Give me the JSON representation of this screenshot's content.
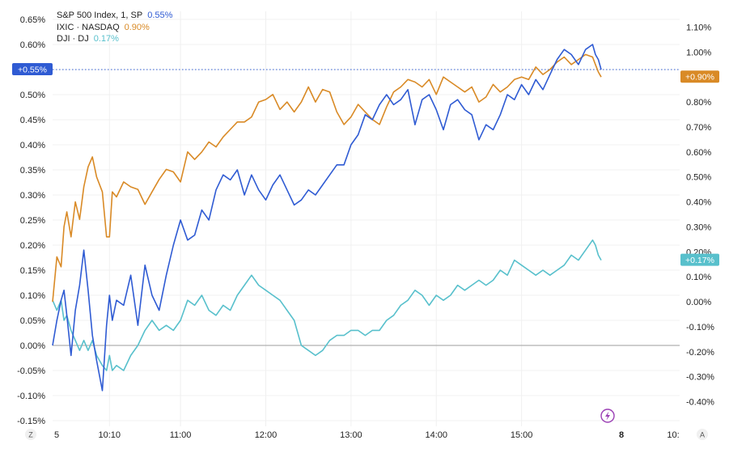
{
  "chart_data": {
    "type": "line",
    "legend": [
      {
        "name": "S&P 500 Index, 1, SP",
        "value": "0.55%",
        "color": "#2f5bd3"
      },
      {
        "name": "IXIC · NASDAQ",
        "value": "0.90%",
        "color": "#d98a26"
      },
      {
        "name": "DJI · DJ",
        "value": "0.17%",
        "color": "#58c0cc"
      }
    ],
    "x_ticks": [
      "5",
      "10:10",
      "11:00",
      "12:00",
      "13:00",
      "14:00",
      "15:00",
      "8",
      "10:"
    ],
    "corner_left": "Z",
    "corner_right": "A",
    "y_left": {
      "ticks": [
        "0.65%",
        "0.60%",
        "0.55%",
        "0.50%",
        "0.45%",
        "0.40%",
        "0.35%",
        "0.30%",
        "0.25%",
        "0.20%",
        "0.15%",
        "0.10%",
        "0.05%",
        "0.00%",
        "-0.05%",
        "-0.10%",
        "-0.15%"
      ],
      "range": [
        -0.15,
        0.65
      ]
    },
    "y_right": {
      "ticks": [
        "1.10%",
        "1.00%",
        "0.90%",
        "0.80%",
        "0.70%",
        "0.60%",
        "0.50%",
        "0.40%",
        "0.30%",
        "0.20%",
        "0.10%",
        "0.00%",
        "-0.10%",
        "-0.20%",
        "-0.30%",
        "-0.40%"
      ],
      "range": [
        -0.45,
        1.15
      ]
    },
    "x_range": [
      "9:30",
      "16:00"
    ],
    "badges": {
      "left": {
        "label": "+0.55%",
        "color": "#2f5bd3"
      },
      "right_top": {
        "label": "+0.90%",
        "color": "#d98a26"
      },
      "right_bottom": {
        "label": "+0.17%",
        "color": "#58c0cc"
      }
    },
    "series": [
      {
        "name": "S&P 500 Index, 1, SP",
        "axis": "left",
        "color": "#2f5bd3",
        "x": [
          "9:30",
          "9:33",
          "9:36",
          "9:38",
          "9:40",
          "9:43",
          "9:46",
          "9:49",
          "9:52",
          "9:55",
          "9:58",
          "10:01",
          "10:05",
          "10:08",
          "10:10",
          "10:12",
          "10:15",
          "10:20",
          "10:25",
          "10:30",
          "10:35",
          "10:40",
          "10:45",
          "10:50",
          "10:55",
          "11:00",
          "11:05",
          "11:10",
          "11:15",
          "11:20",
          "11:25",
          "11:30",
          "11:35",
          "11:40",
          "11:45",
          "11:50",
          "11:55",
          "12:00",
          "12:05",
          "12:10",
          "12:15",
          "12:20",
          "12:25",
          "12:30",
          "12:35",
          "12:40",
          "12:45",
          "12:50",
          "12:55",
          "13:00",
          "13:05",
          "13:10",
          "13:15",
          "13:20",
          "13:25",
          "13:30",
          "13:35",
          "13:40",
          "13:45",
          "13:50",
          "13:55",
          "14:00",
          "14:05",
          "14:10",
          "14:15",
          "14:20",
          "14:25",
          "14:30",
          "14:35",
          "14:40",
          "14:45",
          "14:50",
          "14:55",
          "15:00",
          "15:05",
          "15:10",
          "15:15",
          "15:20",
          "15:25",
          "15:30",
          "15:35",
          "15:40",
          "15:45",
          "15:50",
          "15:52",
          "15:54",
          "15:56"
        ],
        "y": [
          0.0,
          0.05,
          0.09,
          0.11,
          0.06,
          -0.02,
          0.07,
          0.12,
          0.19,
          0.11,
          0.02,
          -0.03,
          -0.09,
          0.04,
          0.1,
          0.05,
          0.09,
          0.08,
          0.14,
          0.04,
          0.16,
          0.1,
          0.07,
          0.14,
          0.2,
          0.25,
          0.21,
          0.22,
          0.27,
          0.25,
          0.31,
          0.34,
          0.33,
          0.35,
          0.3,
          0.34,
          0.31,
          0.29,
          0.32,
          0.34,
          0.31,
          0.28,
          0.29,
          0.31,
          0.3,
          0.32,
          0.34,
          0.36,
          0.36,
          0.4,
          0.42,
          0.46,
          0.45,
          0.48,
          0.5,
          0.48,
          0.49,
          0.51,
          0.44,
          0.49,
          0.5,
          0.47,
          0.43,
          0.48,
          0.49,
          0.47,
          0.46,
          0.41,
          0.44,
          0.43,
          0.46,
          0.5,
          0.49,
          0.52,
          0.5,
          0.53,
          0.51,
          0.54,
          0.57,
          0.59,
          0.58,
          0.56,
          0.59,
          0.6,
          0.58,
          0.57,
          0.55
        ]
      },
      {
        "name": "IXIC · NASDAQ",
        "axis": "right",
        "color": "#d98a26",
        "x": [
          "9:30",
          "9:33",
          "9:36",
          "9:38",
          "9:40",
          "9:43",
          "9:46",
          "9:49",
          "9:52",
          "9:55",
          "9:58",
          "10:01",
          "10:05",
          "10:08",
          "10:10",
          "10:12",
          "10:15",
          "10:20",
          "10:25",
          "10:30",
          "10:35",
          "10:40",
          "10:45",
          "10:50",
          "10:55",
          "11:00",
          "11:05",
          "11:10",
          "11:15",
          "11:20",
          "11:25",
          "11:30",
          "11:35",
          "11:40",
          "11:45",
          "11:50",
          "11:55",
          "12:00",
          "12:05",
          "12:10",
          "12:15",
          "12:20",
          "12:25",
          "12:30",
          "12:35",
          "12:40",
          "12:45",
          "12:50",
          "12:55",
          "13:00",
          "13:05",
          "13:10",
          "13:15",
          "13:20",
          "13:25",
          "13:30",
          "13:35",
          "13:40",
          "13:45",
          "13:50",
          "13:55",
          "14:00",
          "14:05",
          "14:10",
          "14:15",
          "14:20",
          "14:25",
          "14:30",
          "14:35",
          "14:40",
          "14:45",
          "14:50",
          "14:55",
          "15:00",
          "15:05",
          "15:10",
          "15:15",
          "15:20",
          "15:25",
          "15:30",
          "15:35",
          "15:40",
          "15:45",
          "15:50",
          "15:52",
          "15:54",
          "15:56"
        ],
        "y": [
          0.0,
          0.18,
          0.14,
          0.3,
          0.36,
          0.26,
          0.4,
          0.33,
          0.46,
          0.54,
          0.58,
          0.5,
          0.44,
          0.26,
          0.26,
          0.44,
          0.42,
          0.48,
          0.46,
          0.45,
          0.39,
          0.44,
          0.49,
          0.53,
          0.52,
          0.48,
          0.6,
          0.57,
          0.6,
          0.64,
          0.62,
          0.66,
          0.69,
          0.72,
          0.72,
          0.74,
          0.8,
          0.81,
          0.83,
          0.77,
          0.8,
          0.76,
          0.8,
          0.86,
          0.8,
          0.85,
          0.84,
          0.76,
          0.71,
          0.74,
          0.79,
          0.76,
          0.73,
          0.71,
          0.78,
          0.84,
          0.86,
          0.89,
          0.88,
          0.86,
          0.89,
          0.83,
          0.9,
          0.88,
          0.86,
          0.84,
          0.86,
          0.8,
          0.82,
          0.87,
          0.84,
          0.86,
          0.89,
          0.9,
          0.89,
          0.94,
          0.91,
          0.93,
          0.96,
          0.98,
          0.95,
          0.97,
          0.99,
          0.98,
          0.95,
          0.92,
          0.9
        ]
      },
      {
        "name": "DJI · DJ",
        "axis": "left",
        "color": "#58c0cc",
        "x": [
          "9:30",
          "9:33",
          "9:36",
          "9:38",
          "9:40",
          "9:43",
          "9:46",
          "9:49",
          "9:52",
          "9:55",
          "9:58",
          "10:01",
          "10:05",
          "10:08",
          "10:10",
          "10:12",
          "10:15",
          "10:20",
          "10:25",
          "10:30",
          "10:35",
          "10:40",
          "10:45",
          "10:50",
          "10:55",
          "11:00",
          "11:05",
          "11:10",
          "11:15",
          "11:20",
          "11:25",
          "11:30",
          "11:35",
          "11:40",
          "11:45",
          "11:50",
          "11:55",
          "12:00",
          "12:05",
          "12:10",
          "12:15",
          "12:20",
          "12:25",
          "12:30",
          "12:35",
          "12:40",
          "12:45",
          "12:50",
          "12:55",
          "13:00",
          "13:05",
          "13:10",
          "13:15",
          "13:20",
          "13:25",
          "13:30",
          "13:35",
          "13:40",
          "13:45",
          "13:50",
          "13:55",
          "14:00",
          "14:05",
          "14:10",
          "14:15",
          "14:20",
          "14:25",
          "14:30",
          "14:35",
          "14:40",
          "14:45",
          "14:50",
          "14:55",
          "15:00",
          "15:05",
          "15:10",
          "15:15",
          "15:20",
          "15:25",
          "15:30",
          "15:35",
          "15:40",
          "15:45",
          "15:50",
          "15:52",
          "15:54",
          "15:56"
        ],
        "y": [
          0.09,
          0.07,
          0.09,
          0.05,
          0.06,
          0.03,
          0.01,
          -0.01,
          0.01,
          -0.01,
          0.01,
          -0.02,
          -0.04,
          -0.05,
          -0.02,
          -0.05,
          -0.04,
          -0.05,
          -0.02,
          0.0,
          0.03,
          0.05,
          0.03,
          0.04,
          0.03,
          0.05,
          0.09,
          0.08,
          0.1,
          0.07,
          0.06,
          0.08,
          0.07,
          0.1,
          0.12,
          0.14,
          0.12,
          0.11,
          0.1,
          0.09,
          0.07,
          0.05,
          0.0,
          -0.01,
          -0.02,
          -0.01,
          0.01,
          0.02,
          0.02,
          0.03,
          0.03,
          0.02,
          0.03,
          0.03,
          0.05,
          0.06,
          0.08,
          0.09,
          0.11,
          0.1,
          0.08,
          0.1,
          0.09,
          0.1,
          0.12,
          0.11,
          0.12,
          0.13,
          0.12,
          0.13,
          0.15,
          0.14,
          0.17,
          0.16,
          0.15,
          0.14,
          0.15,
          0.14,
          0.15,
          0.16,
          0.18,
          0.17,
          0.19,
          0.21,
          0.2,
          0.18,
          0.17
        ]
      }
    ]
  }
}
